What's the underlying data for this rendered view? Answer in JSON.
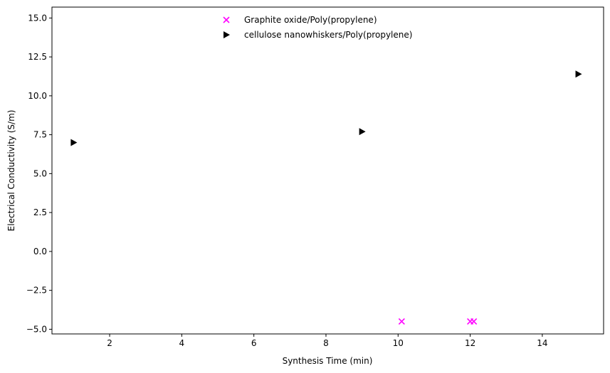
{
  "chart_data": {
    "type": "scatter",
    "title": "",
    "xlabel": "Synthesis Time (min)",
    "ylabel": "Electrical Conductivity (S/m)",
    "xlim": [
      0.4,
      15.7
    ],
    "ylim": [
      -5.3,
      15.7
    ],
    "xticks": [
      2,
      4,
      6,
      8,
      10,
      12,
      14
    ],
    "yticks": [
      -5.0,
      -2.5,
      0.0,
      2.5,
      5.0,
      7.5,
      10.0,
      12.5,
      15.0
    ],
    "xtick_labels": [
      "2",
      "4",
      "6",
      "8",
      "10",
      "12",
      "14"
    ],
    "ytick_labels": [
      "−5.0",
      "−2.5",
      "0.0",
      "2.5",
      "5.0",
      "7.5",
      "10.0",
      "12.5",
      "15.0"
    ],
    "grid": false,
    "legend_position": "top-center",
    "series": [
      {
        "name": "Graphite oxide/Poly(propylene)",
        "marker": "x",
        "color": "#ff00ff",
        "x": [
          10.1,
          12.0,
          12.1
        ],
        "y": [
          -4.5,
          -4.5,
          -4.5
        ]
      },
      {
        "name": "cellulose nanowhiskers/Poly(propylene)",
        "marker": "triangle-right",
        "color": "#000000",
        "x": [
          1.0,
          9.0,
          15.0
        ],
        "y": [
          7.0,
          7.7,
          11.4
        ]
      }
    ]
  }
}
